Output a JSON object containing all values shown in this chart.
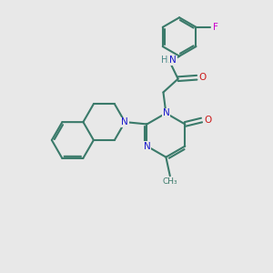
{
  "bg_color": "#e8e8e8",
  "bond_color": "#3a7a6a",
  "N_color": "#1a1acc",
  "O_color": "#cc1a1a",
  "F_color": "#cc00cc",
  "H_color": "#4a8888",
  "line_width": 1.5,
  "figsize": [
    3.0,
    3.0
  ],
  "dpi": 100,
  "xlim": [
    0,
    10
  ],
  "ylim": [
    0,
    10
  ]
}
